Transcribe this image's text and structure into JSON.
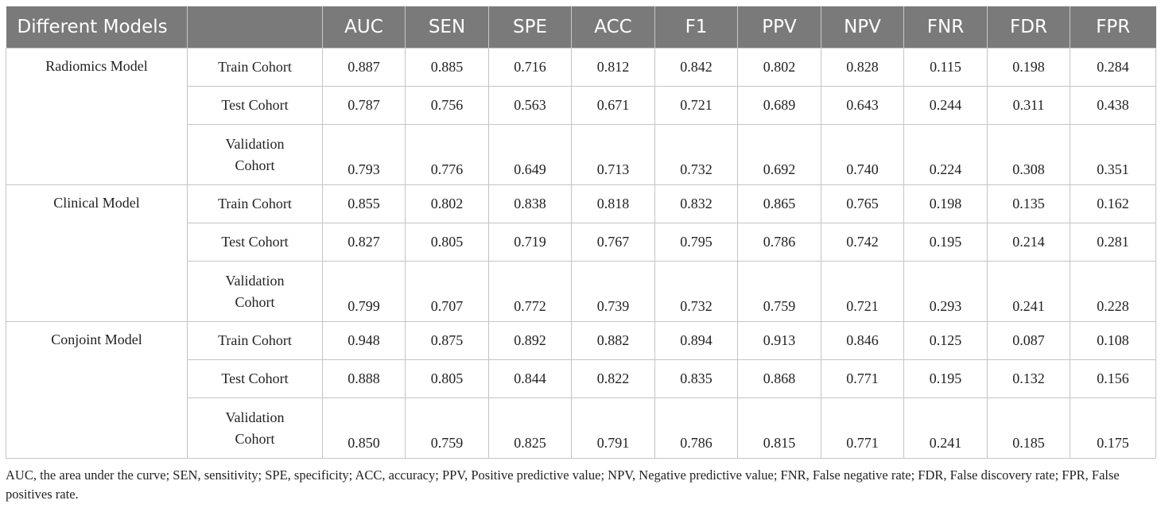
{
  "headers": [
    "Different Models",
    "",
    "AUC",
    "SEN",
    "SPE",
    "ACC",
    "F1",
    "PPV",
    "NPV",
    "FNR",
    "FDR",
    "FPR"
  ],
  "groups": [
    {
      "model": "Radiomics Model",
      "rows": [
        {
          "cohort": "Train Cohort",
          "values": [
            "0.887",
            "0.885",
            "0.716",
            "0.812",
            "0.842",
            "0.802",
            "0.828",
            "0.115",
            "0.198",
            "0.284"
          ]
        },
        {
          "cohort": "Test Cohort",
          "values": [
            "0.787",
            "0.756",
            "0.563",
            "0.671",
            "0.721",
            "0.689",
            "0.643",
            "0.244",
            "0.311",
            "0.438"
          ]
        },
        {
          "cohort_line1": "Validation",
          "cohort_line2": "Cohort",
          "values": [
            "0.793",
            "0.776",
            "0.649",
            "0.713",
            "0.732",
            "0.692",
            "0.740",
            "0.224",
            "0.308",
            "0.351"
          ]
        }
      ]
    },
    {
      "model": "Clinical Model",
      "rows": [
        {
          "cohort": "Train Cohort",
          "values": [
            "0.855",
            "0.802",
            "0.838",
            "0.818",
            "0.832",
            "0.865",
            "0.765",
            "0.198",
            "0.135",
            "0.162"
          ]
        },
        {
          "cohort": "Test Cohort",
          "values": [
            "0.827",
            "0.805",
            "0.719",
            "0.767",
            "0.795",
            "0.786",
            "0.742",
            "0.195",
            "0.214",
            "0.281"
          ]
        },
        {
          "cohort_line1": "Validation",
          "cohort_line2": "Cohort",
          "values": [
            "0.799",
            "0.707",
            "0.772",
            "0.739",
            "0.732",
            "0.759",
            "0.721",
            "0.293",
            "0.241",
            "0.228"
          ]
        }
      ]
    },
    {
      "model": "Conjoint Model",
      "rows": [
        {
          "cohort": "Train Cohort",
          "values": [
            "0.948",
            "0.875",
            "0.892",
            "0.882",
            "0.894",
            "0.913",
            "0.846",
            "0.125",
            "0.087",
            "0.108"
          ]
        },
        {
          "cohort": "Test Cohort",
          "values": [
            "0.888",
            "0.805",
            "0.844",
            "0.822",
            "0.835",
            "0.868",
            "0.771",
            "0.195",
            "0.132",
            "0.156"
          ]
        },
        {
          "cohort_line1": "Validation",
          "cohort_line2": "Cohort",
          "values": [
            "0.850",
            "0.759",
            "0.825",
            "0.791",
            "0.786",
            "0.815",
            "0.771",
            "0.241",
            "0.185",
            "0.175"
          ]
        }
      ]
    }
  ],
  "footnote": "AUC, the area under the curve; SEN, sensitivity; SPE, specificity; ACC, accuracy; PPV, Positive predictive value; NPV, Negative predictive value; FNR, False negative rate; FDR, False discovery rate; FPR, False positives rate."
}
